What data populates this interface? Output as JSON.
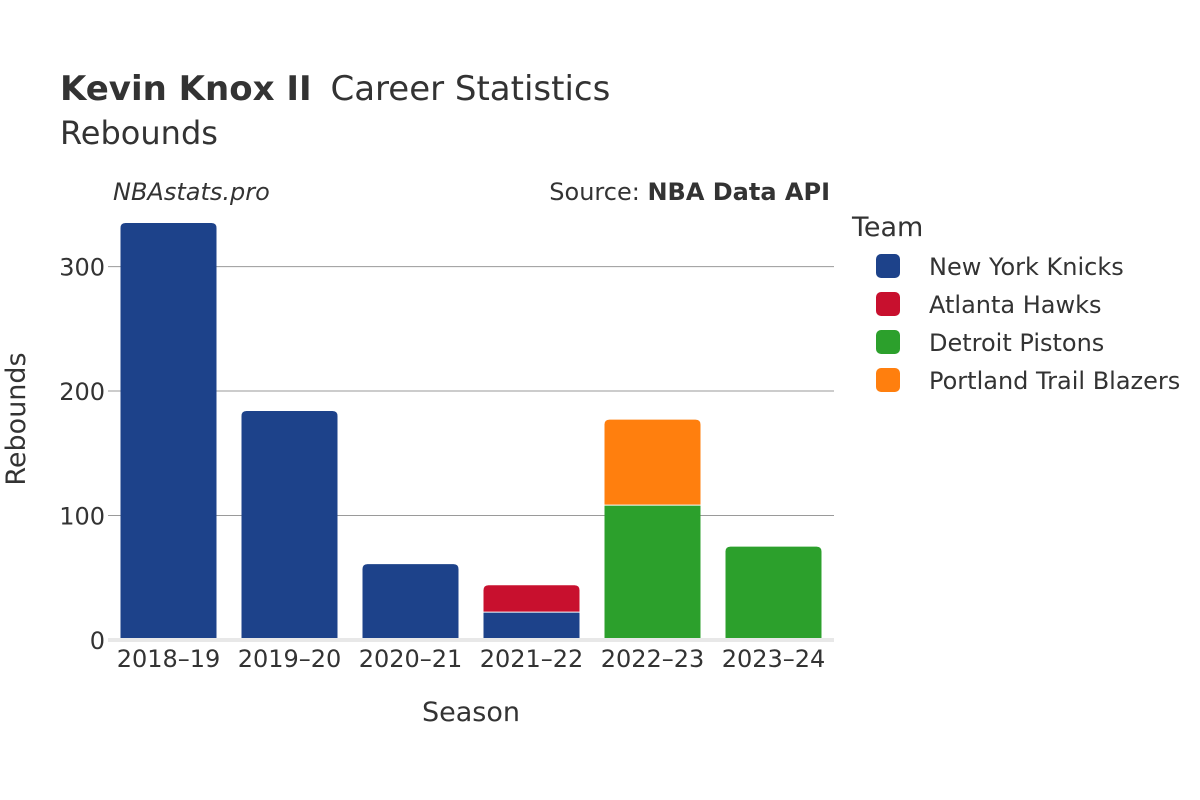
{
  "chart_data": {
    "type": "bar",
    "stacked": true,
    "title_bold": "Kevin Knox II",
    "title_rest": "Career Statistics",
    "subtitle": "Rebounds",
    "watermark": "NBAstats.pro",
    "source_prefix": "Source: ",
    "source_name": "NBA Data API",
    "xlabel": "Season",
    "ylabel": "Rebounds",
    "ylim": [
      0,
      335
    ],
    "yticks": [
      0,
      100,
      200,
      300
    ],
    "grid": true,
    "legend_title": "Team",
    "legend_position": "right",
    "categories": [
      "2018–19",
      "2019–20",
      "2020–21",
      "2021–22",
      "2022–23",
      "2023–24"
    ],
    "series": [
      {
        "name": "New York Knicks",
        "color": "#1d428a",
        "values": [
          335,
          184,
          61,
          22,
          0,
          0
        ]
      },
      {
        "name": "Atlanta Hawks",
        "color": "#c8102e",
        "values": [
          0,
          0,
          0,
          22,
          0,
          0
        ]
      },
      {
        "name": "Detroit Pistons",
        "color": "#2ca02c",
        "values": [
          0,
          0,
          0,
          0,
          108,
          75
        ]
      },
      {
        "name": "Portland Trail Blazers",
        "color": "#ff7f0e",
        "values": [
          0,
          0,
          0,
          0,
          69,
          0
        ]
      }
    ]
  }
}
